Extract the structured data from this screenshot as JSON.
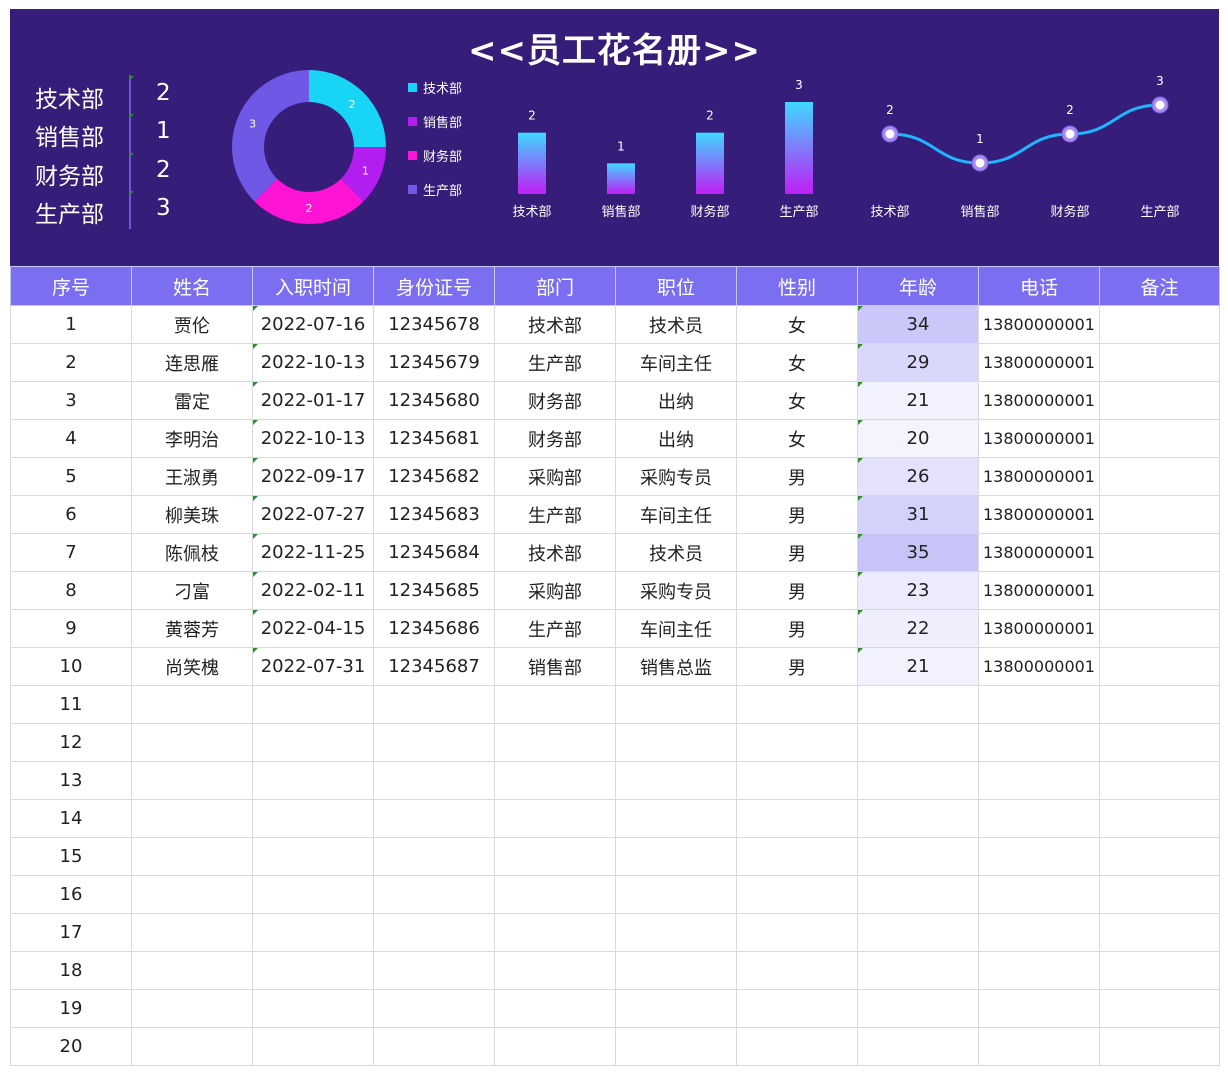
{
  "title": "<<员工花名册>>",
  "colors": {
    "header_bg": "#361d7a",
    "table_header_bg": "#7b6ef0",
    "tech": "#18d4f5",
    "sales": "#b21ef0",
    "finance": "#ff14d6",
    "production": "#6f58e6",
    "line": "#1fb6ff",
    "age_high": "#c7c5f8",
    "age_low": "#f5f4fe"
  },
  "dept_summary": [
    {
      "name": "技术部",
      "count": "2"
    },
    {
      "name": "销售部",
      "count": "1"
    },
    {
      "name": "财务部",
      "count": "2"
    },
    {
      "name": "生产部",
      "count": "3"
    }
  ],
  "chart_data": [
    {
      "type": "pie",
      "title": "",
      "categories": [
        "技术部",
        "销售部",
        "财务部",
        "生产部"
      ],
      "values": [
        2,
        1,
        2,
        3
      ],
      "colors": [
        "#18d4f5",
        "#b21ef0",
        "#ff14d6",
        "#6f58e6"
      ],
      "donut": true,
      "legend": "right"
    },
    {
      "type": "bar",
      "title": "",
      "categories": [
        "技术部",
        "销售部",
        "财务部",
        "生产部"
      ],
      "values": [
        2,
        1,
        2,
        3
      ],
      "gradient": [
        "#3fd8ff",
        "#c01ef5"
      ],
      "ylim": [
        0,
        3
      ]
    },
    {
      "type": "line",
      "title": "",
      "categories": [
        "技术部",
        "销售部",
        "财务部",
        "生产部"
      ],
      "values": [
        2,
        1,
        2,
        3
      ],
      "smooth": true,
      "ylim": [
        1,
        3
      ]
    }
  ],
  "table": {
    "headers": [
      "序号",
      "姓名",
      "入职时间",
      "身份证号",
      "部门",
      "职位",
      "性别",
      "年龄",
      "电话",
      "备注"
    ],
    "rows": [
      [
        "1",
        "贾伦",
        "2022-07-16",
        "12345678",
        "技术部",
        "技术员",
        "女",
        "34",
        "13800000001",
        ""
      ],
      [
        "2",
        "连思雁",
        "2022-10-13",
        "12345679",
        "生产部",
        "车间主任",
        "女",
        "29",
        "13800000001",
        ""
      ],
      [
        "3",
        "雷定",
        "2022-01-17",
        "12345680",
        "财务部",
        "出纳",
        "女",
        "21",
        "13800000001",
        ""
      ],
      [
        "4",
        "李明治",
        "2022-10-13",
        "12345681",
        "财务部",
        "出纳",
        "女",
        "20",
        "13800000001",
        ""
      ],
      [
        "5",
        "王淑勇",
        "2022-09-17",
        "12345682",
        "采购部",
        "采购专员",
        "男",
        "26",
        "13800000001",
        ""
      ],
      [
        "6",
        "柳美珠",
        "2022-07-27",
        "12345683",
        "生产部",
        "车间主任",
        "男",
        "31",
        "13800000001",
        ""
      ],
      [
        "7",
        "陈佩枝",
        "2022-11-25",
        "12345684",
        "技术部",
        "技术员",
        "男",
        "35",
        "13800000001",
        ""
      ],
      [
        "8",
        "刁富",
        "2022-02-11",
        "12345685",
        "采购部",
        "采购专员",
        "男",
        "23",
        "13800000001",
        ""
      ],
      [
        "9",
        "黄蓉芳",
        "2022-04-15",
        "12345686",
        "生产部",
        "车间主任",
        "男",
        "22",
        "13800000001",
        ""
      ],
      [
        "10",
        "尚笑槐",
        "2022-07-31",
        "12345687",
        "销售部",
        "销售总监",
        "男",
        "21",
        "13800000001",
        ""
      ],
      [
        "11",
        "",
        "",
        "",
        "",
        "",
        "",
        "",
        "",
        ""
      ],
      [
        "12",
        "",
        "",
        "",
        "",
        "",
        "",
        "",
        "",
        ""
      ],
      [
        "13",
        "",
        "",
        "",
        "",
        "",
        "",
        "",
        "",
        ""
      ],
      [
        "14",
        "",
        "",
        "",
        "",
        "",
        "",
        "",
        "",
        ""
      ],
      [
        "15",
        "",
        "",
        "",
        "",
        "",
        "",
        "",
        "",
        ""
      ],
      [
        "16",
        "",
        "",
        "",
        "",
        "",
        "",
        "",
        "",
        ""
      ],
      [
        "17",
        "",
        "",
        "",
        "",
        "",
        "",
        "",
        "",
        ""
      ],
      [
        "18",
        "",
        "",
        "",
        "",
        "",
        "",
        "",
        "",
        ""
      ],
      [
        "19",
        "",
        "",
        "",
        "",
        "",
        "",
        "",
        "",
        ""
      ],
      [
        "20",
        "",
        "",
        "",
        "",
        "",
        "",
        "",
        "",
        ""
      ]
    ]
  }
}
